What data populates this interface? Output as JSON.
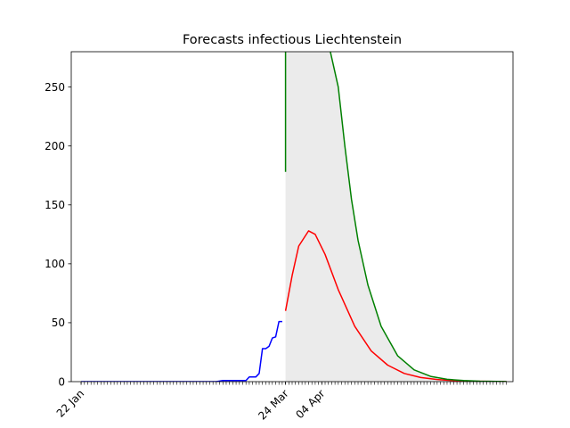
{
  "chart_data": {
    "type": "line",
    "title": "Forecasts infectious Liechtenstein",
    "xlabel": "",
    "ylabel": "",
    "ylim": [
      0,
      280
    ],
    "x_range": [
      "2020-01-19",
      "2020-06-01"
    ],
    "grid": false,
    "y_ticks": [
      0,
      50,
      100,
      150,
      200,
      250
    ],
    "x_tick_labels": [
      {
        "date": "2020-01-22",
        "label": "22 Jan"
      },
      {
        "date": "2020-03-24",
        "label": "24 Mar"
      },
      {
        "date": "2020-04-04",
        "label": "04 Apr"
      }
    ],
    "series": [
      {
        "role": "observed",
        "color": "#0000ff",
        "points": [
          [
            "2020-01-22",
            0
          ],
          [
            "2020-01-29",
            0
          ],
          [
            "2020-02-05",
            0
          ],
          [
            "2020-02-12",
            0
          ],
          [
            "2020-02-19",
            0
          ],
          [
            "2020-02-26",
            0
          ],
          [
            "2020-03-03",
            0
          ],
          [
            "2020-03-05",
            1
          ],
          [
            "2020-03-12",
            1
          ],
          [
            "2020-03-13",
            4
          ],
          [
            "2020-03-15",
            4
          ],
          [
            "2020-03-16",
            7
          ],
          [
            "2020-03-17",
            28
          ],
          [
            "2020-03-18",
            28
          ],
          [
            "2020-03-19",
            30
          ],
          [
            "2020-03-20",
            37
          ],
          [
            "2020-03-21",
            38
          ],
          [
            "2020-03-22",
            51
          ],
          [
            "2020-03-23",
            51
          ]
        ]
      },
      {
        "role": "forecast",
        "color": "#ff0000",
        "points": [
          [
            "2020-03-24",
            60
          ],
          [
            "2020-03-26",
            90
          ],
          [
            "2020-03-28",
            115
          ],
          [
            "2020-03-31",
            128
          ],
          [
            "2020-04-02",
            125
          ],
          [
            "2020-04-05",
            108
          ],
          [
            "2020-04-09",
            78
          ],
          [
            "2020-04-14",
            47
          ],
          [
            "2020-04-19",
            26
          ],
          [
            "2020-04-24",
            14
          ],
          [
            "2020-04-29",
            7
          ],
          [
            "2020-05-04",
            3.5
          ],
          [
            "2020-05-09",
            1.8
          ],
          [
            "2020-05-14",
            0.8
          ],
          [
            "2020-05-19",
            0.4
          ],
          [
            "2020-05-30",
            0.1
          ]
        ]
      },
      {
        "role": "upper bound",
        "color": "#008000",
        "points": [
          [
            "2020-03-24",
            178
          ],
          [
            "2020-03-24",
            285
          ],
          [
            "2020-04-05",
            300
          ],
          [
            "2020-04-09",
            250
          ],
          [
            "2020-04-11",
            200
          ],
          [
            "2020-04-13",
            155
          ],
          [
            "2020-04-15",
            120
          ],
          [
            "2020-04-18",
            82
          ],
          [
            "2020-04-22",
            47
          ],
          [
            "2020-04-27",
            22
          ],
          [
            "2020-05-02",
            10
          ],
          [
            "2020-05-07",
            4.5
          ],
          [
            "2020-05-12",
            2
          ],
          [
            "2020-05-17",
            0.9
          ],
          [
            "2020-05-22",
            0.4
          ],
          [
            "2020-05-30",
            0.1
          ]
        ]
      }
    ],
    "band": {
      "color": "#ebebeb",
      "upper": [
        [
          "2020-03-24",
          300
        ],
        [
          "2020-04-05",
          300
        ],
        [
          "2020-04-09",
          250
        ],
        [
          "2020-04-11",
          200
        ],
        [
          "2020-04-13",
          155
        ],
        [
          "2020-04-15",
          120
        ],
        [
          "2020-04-18",
          82
        ],
        [
          "2020-04-22",
          47
        ],
        [
          "2020-04-27",
          22
        ],
        [
          "2020-05-02",
          10
        ],
        [
          "2020-05-07",
          4.5
        ],
        [
          "2020-05-12",
          2
        ],
        [
          "2020-05-17",
          0.9
        ],
        [
          "2020-05-22",
          0.4
        ],
        [
          "2020-05-30",
          0.1
        ]
      ],
      "lower": [
        [
          "2020-03-24",
          0
        ],
        [
          "2020-05-30",
          0
        ]
      ]
    }
  }
}
